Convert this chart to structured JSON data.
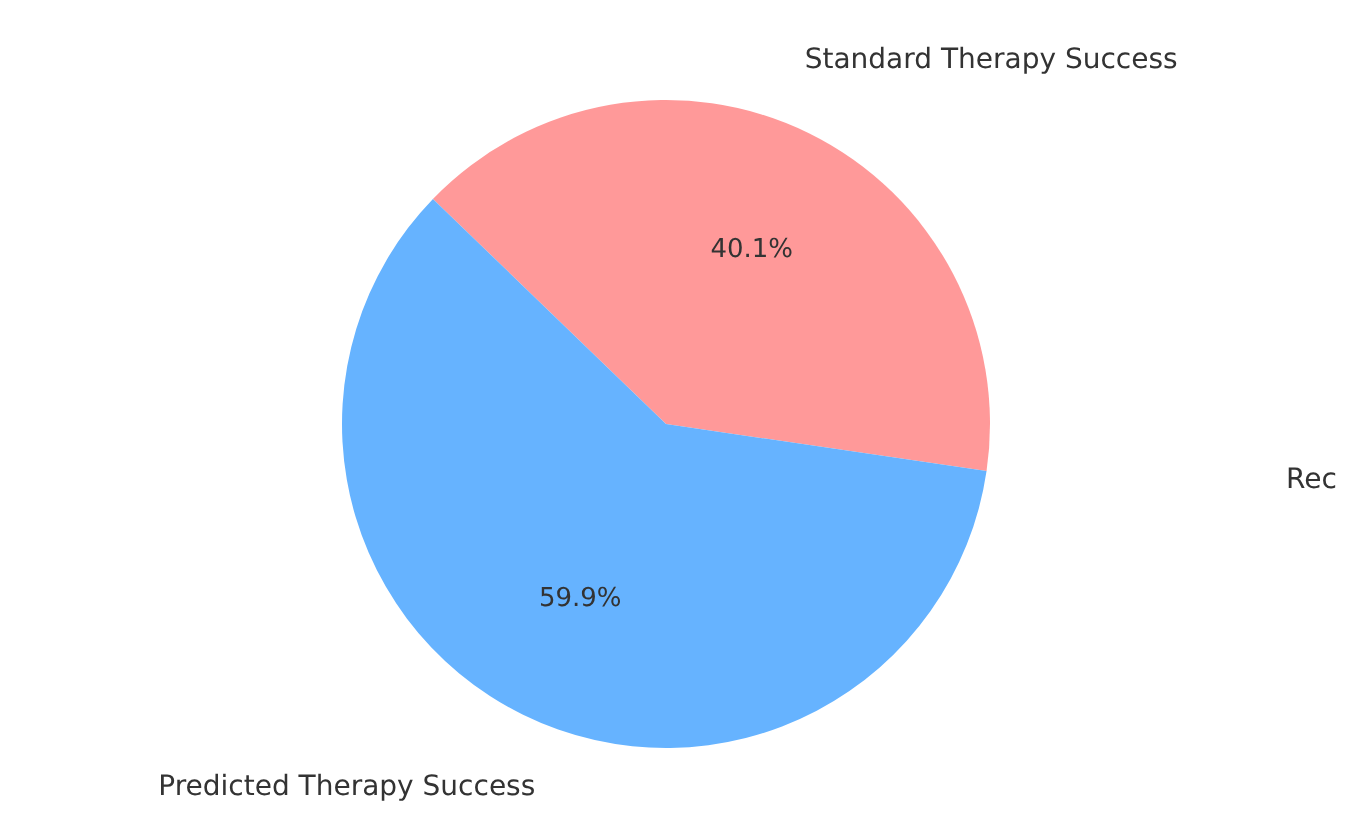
{
  "chart_data": {
    "type": "pie",
    "categories": [
      "Standard Therapy Success",
      "Predicted Therapy Success"
    ],
    "values": [
      40.1,
      59.9
    ],
    "colors": [
      "#ff9999",
      "#66b3ff"
    ],
    "value_labels": [
      "40.1%",
      "59.9%"
    ],
    "annotations": [
      "Rec"
    ]
  }
}
